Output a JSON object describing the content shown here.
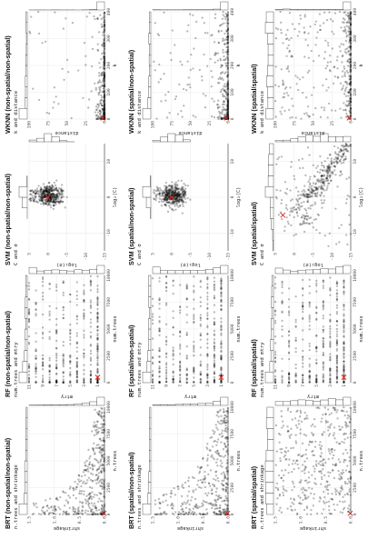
{
  "chart_data": [
    {
      "id": "brt_ns_ns",
      "type": "scatter",
      "title": "BRT (non-spatial/non-spatial)",
      "subtitle": "n.trees and shrinkage",
      "xlabel": "n.trees",
      "ylabel": "shrinkage",
      "xlim": [
        0,
        10000
      ],
      "ylim": [
        0,
        1.5
      ],
      "xticks": [
        0,
        2500,
        5000,
        7500,
        10000
      ],
      "yticks": [
        0.0,
        0.5,
        1.0,
        1.5
      ],
      "best": [
        100,
        0.01
      ],
      "pattern": "brt_ns"
    },
    {
      "id": "rf_ns_ns",
      "type": "scatter",
      "title": "RF (non-spatial/non-spatial)",
      "subtitle": "num.trees and mtry",
      "xlabel": "num.trees",
      "ylabel": "mtry",
      "xlim": [
        0,
        10000
      ],
      "ylim": [
        0,
        11
      ],
      "xticks": [
        0,
        2500,
        5000,
        7500,
        10000
      ],
      "yticks": [
        1,
        3,
        5,
        7,
        9,
        11
      ],
      "best": [
        500,
        1
      ],
      "pattern": "rf"
    },
    {
      "id": "svm_ns_ns",
      "type": "scatter",
      "title": "SVM (non-spatial/non-spatial)",
      "subtitle": "C and σ",
      "xlabel": "log₂(C)",
      "ylabel": "log₂(σ)",
      "xlim": [
        -15,
        15
      ],
      "ylim": [
        -15,
        5
      ],
      "xticks": [
        -10,
        0,
        10
      ],
      "yticks": [
        -15,
        -10,
        -5,
        0,
        5
      ],
      "best": [
        0,
        0
      ],
      "pattern": "svm_ns"
    },
    {
      "id": "wknn_ns_ns",
      "type": "scatter",
      "title": "WKNN (non-spatial/non-spatial)",
      "subtitle": "k and distance",
      "xlabel": "k",
      "ylabel": "distance",
      "xlim": [
        0,
        400
      ],
      "ylim": [
        0,
        100
      ],
      "xticks": [
        0,
        100,
        200,
        300,
        400
      ],
      "yticks": [
        0,
        25,
        50,
        75,
        100
      ],
      "best": [
        4,
        2
      ],
      "pattern": "wknn_ns"
    },
    {
      "id": "brt_s_ns",
      "type": "scatter",
      "title": "BRT (spatial/non-spatial)",
      "subtitle": "n.trees and shrinkage",
      "xlabel": "n.trees",
      "ylabel": "shrinkage",
      "xlim": [
        0,
        10000
      ],
      "ylim": [
        0,
        1.5
      ],
      "xticks": [
        0,
        2500,
        5000,
        7500,
        10000
      ],
      "yticks": [
        0.0,
        0.5,
        1.0,
        1.5
      ],
      "best": [
        100,
        0.01
      ],
      "pattern": "brt_mid"
    },
    {
      "id": "rf_s_ns",
      "type": "scatter",
      "title": "RF (spatial/non-spatial)",
      "subtitle": "num.trees and mtry",
      "xlabel": "num.trees",
      "ylabel": "mtry",
      "xlim": [
        0,
        10000
      ],
      "ylim": [
        0,
        11
      ],
      "xticks": [
        0,
        2500,
        5000,
        7500,
        10000
      ],
      "yticks": [
        1,
        3,
        5,
        7,
        9,
        11
      ],
      "best": [
        500,
        1
      ],
      "pattern": "rf"
    },
    {
      "id": "svm_s_ns",
      "type": "scatter",
      "title": "SVM (spatial/non-spatial)",
      "subtitle": "C and σ",
      "xlabel": "log₂(C)",
      "ylabel": "log₂(σ)",
      "xlim": [
        -15,
        15
      ],
      "ylim": [
        -15,
        5
      ],
      "xticks": [
        -10,
        0,
        10
      ],
      "yticks": [
        -15,
        -10,
        -5,
        0,
        5
      ],
      "best": [
        0,
        0
      ],
      "pattern": "svm_ns"
    },
    {
      "id": "wknn_s_ns",
      "type": "scatter",
      "title": "WKNN (spatial/non-spatial)",
      "subtitle": "k and distance",
      "xlabel": "k",
      "ylabel": "distance",
      "xlim": [
        0,
        400
      ],
      "ylim": [
        0,
        100
      ],
      "xticks": [
        0,
        100,
        200,
        300,
        400
      ],
      "yticks": [
        0,
        25,
        50,
        75,
        100
      ],
      "best": [
        4,
        2
      ],
      "pattern": "wknn_mid"
    },
    {
      "id": "brt_s_s",
      "type": "scatter",
      "title": "BRT (spatial/spatial)",
      "subtitle": "n.trees and shrinkage",
      "xlabel": "n.trees",
      "ylabel": "shrinkage",
      "xlim": [
        0,
        10000
      ],
      "ylim": [
        0,
        1.5
      ],
      "xticks": [
        0,
        2500,
        5000,
        7500,
        10000
      ],
      "yticks": [
        0.0,
        0.5,
        1.0,
        1.5
      ],
      "best": [
        100,
        0.01
      ],
      "pattern": "brt_s"
    },
    {
      "id": "rf_s_s",
      "type": "scatter",
      "title": "RF (spatial/spatial)",
      "subtitle": "num.trees and mtry",
      "xlabel": "num.trees",
      "ylabel": "mtry",
      "xlim": [
        0,
        10000
      ],
      "ylim": [
        0,
        11
      ],
      "xticks": [
        0,
        2500,
        5000,
        7500,
        10000
      ],
      "yticks": [
        1,
        3,
        5,
        7,
        9,
        11
      ],
      "best": [
        500,
        1
      ],
      "pattern": "rf"
    },
    {
      "id": "svm_s_s",
      "type": "scatter",
      "title": "SVM (spatial/spatial)",
      "subtitle": "C and σ",
      "xlabel": "log₂(C)",
      "ylabel": "log₂(σ)",
      "xlim": [
        -15,
        15
      ],
      "ylim": [
        -15,
        5
      ],
      "xticks": [
        -10,
        0,
        10
      ],
      "yticks": [
        -15,
        -10,
        -5,
        0,
        5
      ],
      "best": [
        -5,
        3
      ],
      "pattern": "svm_s"
    },
    {
      "id": "wknn_s_s",
      "type": "scatter",
      "title": "WKNN (spatial/spatial)",
      "subtitle": "k and distance",
      "xlabel": "k",
      "ylabel": "distance",
      "xlim": [
        0,
        400
      ],
      "ylim": [
        0,
        100
      ],
      "xticks": [
        0,
        100,
        200,
        300,
        400
      ],
      "yticks": [
        0,
        25,
        50,
        75,
        100
      ],
      "best": [
        4,
        2
      ],
      "pattern": "wknn_s"
    }
  ]
}
